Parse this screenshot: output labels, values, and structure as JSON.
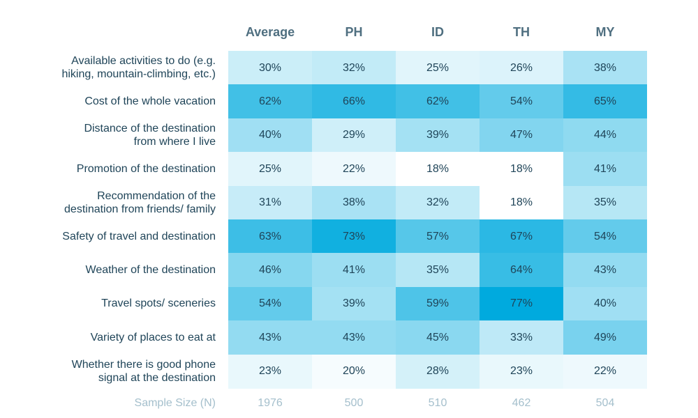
{
  "chart_data": {
    "type": "heatmap",
    "title": "",
    "columns": [
      "Average",
      "PH",
      "ID",
      "TH",
      "MY"
    ],
    "rows": [
      {
        "label": "Available activities to do (e.g.\nhiking, mountain-climbing, etc.)",
        "values": [
          30,
          32,
          25,
          26,
          38
        ]
      },
      {
        "label": "Cost of the whole vacation",
        "values": [
          62,
          66,
          62,
          54,
          65
        ]
      },
      {
        "label": "Distance of the destination\nfrom where I live",
        "values": [
          40,
          29,
          39,
          47,
          44
        ]
      },
      {
        "label": "Promotion of the destination",
        "values": [
          25,
          22,
          18,
          18,
          41
        ]
      },
      {
        "label": "Recommendation of the\ndestination from friends/ family",
        "values": [
          31,
          38,
          32,
          18,
          35
        ]
      },
      {
        "label": "Safety of travel and destination",
        "values": [
          63,
          73,
          57,
          67,
          54
        ]
      },
      {
        "label": "Weather of the destination",
        "values": [
          46,
          41,
          35,
          64,
          43
        ]
      },
      {
        "label": "Travel spots/ sceneries",
        "values": [
          54,
          39,
          59,
          77,
          40
        ]
      },
      {
        "label": "Variety of places to eat at",
        "values": [
          43,
          43,
          45,
          33,
          49
        ]
      },
      {
        "label": "Whether there is good phone\nsignal at the destination",
        "values": [
          23,
          20,
          28,
          23,
          22
        ]
      }
    ],
    "value_suffix": "%",
    "sample_size": {
      "label": "Sample Size (N)",
      "values": [
        "1976",
        "500",
        "510",
        "462",
        "504"
      ]
    },
    "color_scale": {
      "min_value": 18,
      "max_value": 77,
      "min_color": "#ffffff",
      "max_color": "#00aade"
    }
  }
}
